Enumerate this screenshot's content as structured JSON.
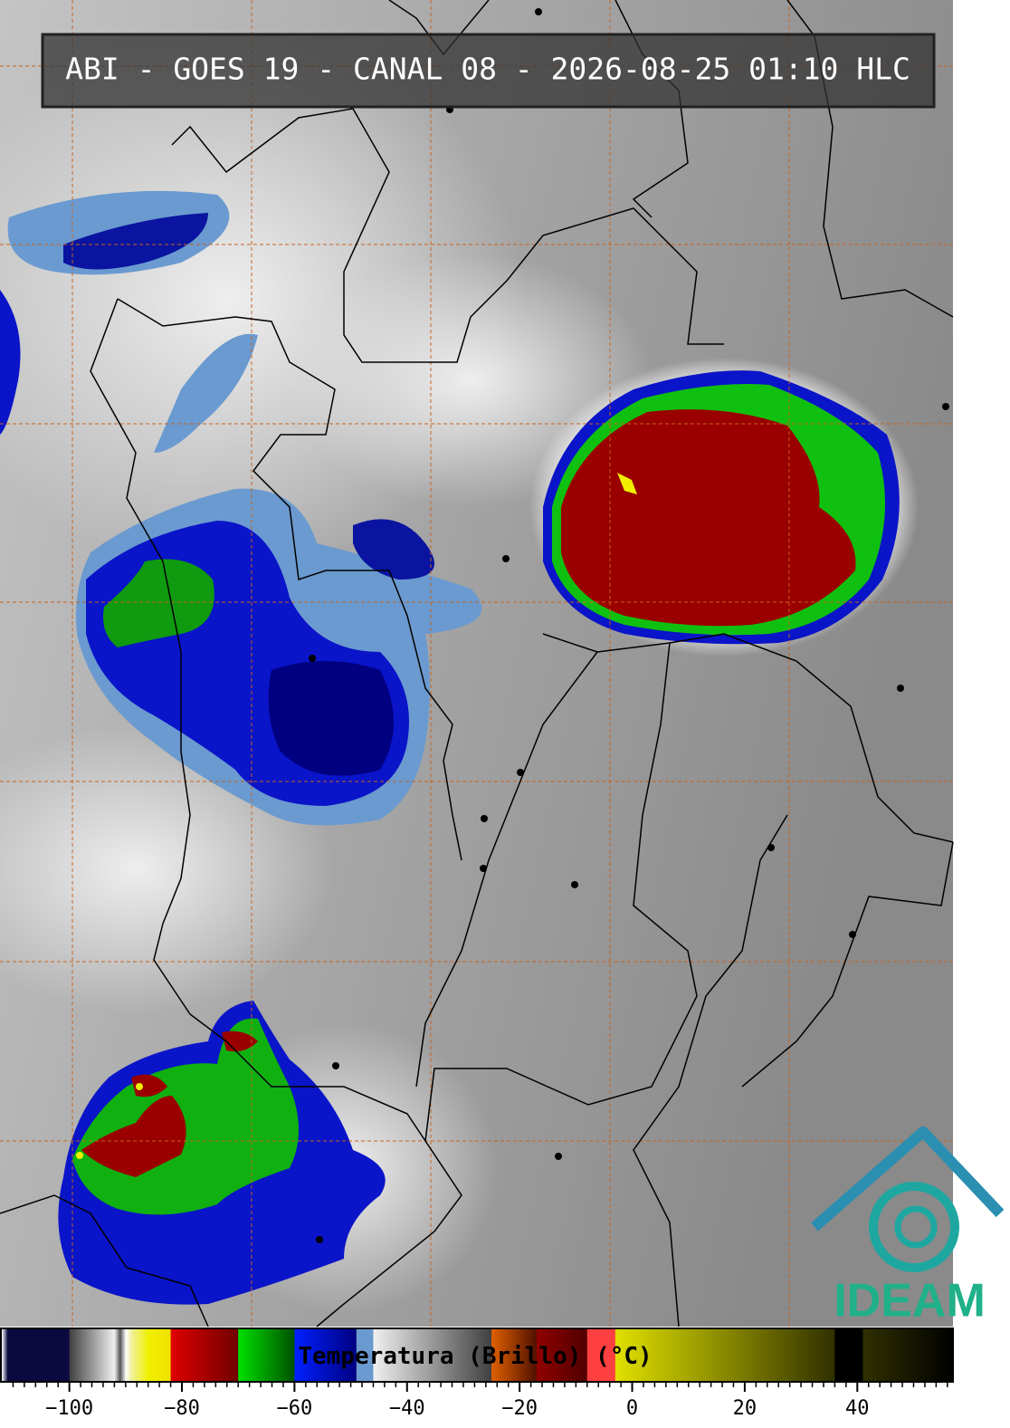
{
  "header": {
    "title": "ABI - GOES 19 - CANAL 08 - 2026-08-25 01:10 HLC"
  },
  "logo": {
    "text": "IDEAM"
  },
  "chart_data": {
    "type": "colorbar",
    "label": "Temperatura (Brillo) (°C)",
    "xlim": [
      -112,
      57
    ],
    "xticks": [
      {
        "value": -100,
        "label": "−100"
      },
      {
        "value": -80,
        "label": "−80"
      },
      {
        "value": -60,
        "label": "−60"
      },
      {
        "value": -40,
        "label": "−40"
      },
      {
        "value": -20,
        "label": "−20"
      },
      0,
      20,
      40
    ],
    "minor_xticks": [
      -110,
      -108,
      -106,
      -104,
      -102,
      -98,
      -96,
      -94,
      -92,
      -90,
      -88,
      -86,
      -84,
      -82,
      -78,
      -76,
      -74,
      -72,
      -70,
      -68,
      -66,
      -64,
      -62,
      -58,
      -56,
      -54,
      -52,
      -50,
      -48,
      -46,
      -44,
      -42,
      -38,
      -36,
      -34,
      -32,
      -30,
      -28,
      -26,
      -24,
      -22,
      -18,
      -16,
      -14,
      -12,
      -10,
      -8,
      -6,
      -4,
      -2,
      2,
      4,
      6,
      8,
      10,
      12,
      14,
      16,
      18,
      22,
      24,
      26,
      28,
      30,
      32,
      34,
      36,
      38,
      42,
      44,
      46,
      48,
      50,
      52,
      54,
      56
    ],
    "stops": [
      [
        -112,
        "#ffffff"
      ],
      [
        -111,
        "#0a0a40"
      ],
      [
        -100,
        "#0a0a40"
      ],
      [
        -100,
        "#404040"
      ],
      [
        -92,
        "#f0f0f0"
      ],
      [
        -91,
        "#505050"
      ],
      [
        -90,
        "#ffffff"
      ],
      [
        -89,
        "#f0f0a0"
      ],
      [
        -86,
        "#f0f000"
      ],
      [
        -82,
        "#f0e000"
      ],
      [
        -82,
        "#e00000"
      ],
      [
        -70,
        "#700000"
      ],
      [
        -70,
        "#00e000"
      ],
      [
        -60,
        "#005000"
      ],
      [
        -60,
        "#0020ff"
      ],
      [
        -49,
        "#000080"
      ],
      [
        -49,
        "#6a9ad0"
      ],
      [
        -46,
        "#6a9ad0"
      ],
      [
        -46,
        "#f0f0f0"
      ],
      [
        -25,
        "#404040"
      ],
      [
        -25,
        "#e06000"
      ],
      [
        -17,
        "#501000"
      ],
      [
        -17,
        "#900000"
      ],
      [
        -8,
        "#500000"
      ],
      [
        -8,
        "#ff4040"
      ],
      [
        -3,
        "#ff4040"
      ],
      [
        -3,
        "#e0e000"
      ],
      [
        36,
        "#303000"
      ],
      [
        36,
        "#000000"
      ],
      [
        41,
        "#000000"
      ],
      [
        41,
        "#303000"
      ],
      [
        57,
        "#000000"
      ]
    ]
  }
}
